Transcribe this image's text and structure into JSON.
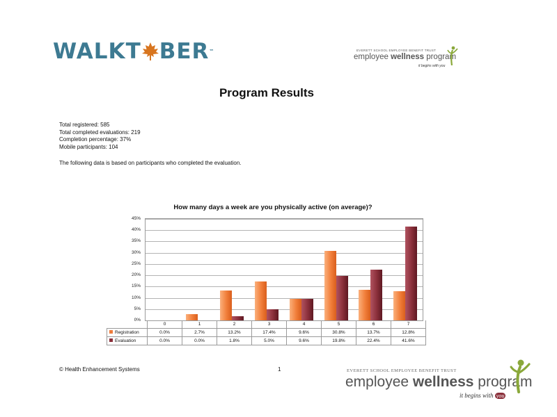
{
  "header": {
    "logo_left_pre": "WALKT",
    "logo_left_post": "BER",
    "logo_tm": "™",
    "logo_right": {
      "trust": "EVERETT SCHOOL EMPLOYEE BENEFIT TRUST",
      "program_a": "employee ",
      "program_b": "wellness",
      "program_c": " program",
      "tagline": "it begins with you"
    }
  },
  "title": "Program Results",
  "stats": [
    "Total registered: 585",
    "Total completed evaluations: 219",
    "Completion percentage: 37%",
    "Mobile participants: 104"
  ],
  "note": "The following data is based on participants who completed the evaluation.",
  "chart_data": {
    "type": "bar",
    "title": "How many days a week are you physically active (on average)?",
    "categories": [
      "0",
      "1",
      "2",
      "3",
      "4",
      "5",
      "6",
      "7"
    ],
    "series": [
      {
        "name": "Registration",
        "values": [
          0.0,
          2.7,
          13.2,
          17.4,
          9.6,
          30.8,
          13.7,
          12.8
        ],
        "labels": [
          "0.0%",
          "2.7%",
          "13.2%",
          "17.4%",
          "9.6%",
          "30.8%",
          "13.7%",
          "12.8%"
        ],
        "color": "#ee7c3c"
      },
      {
        "name": "Evaluation",
        "values": [
          0.0,
          0.0,
          1.8,
          5.0,
          9.6,
          19.8,
          22.4,
          41.6
        ],
        "labels": [
          "0.0%",
          "0.0%",
          "1.8%",
          "5.0%",
          "9.6%",
          "19.8%",
          "22.4%",
          "41.6%"
        ],
        "color": "#8a2f3a"
      }
    ],
    "yticks": [
      "0%",
      "5%",
      "10%",
      "15%",
      "20%",
      "25%",
      "30%",
      "35%",
      "40%",
      "45%"
    ],
    "ylim": [
      0,
      45
    ],
    "grid": true,
    "legend": "data-table"
  },
  "footer": {
    "copyright": "© Health Enhancement Systems",
    "page_number": "1",
    "logo": {
      "trust": "EVERETT SCHOOL EMPLOYEE BENEFIT TRUST",
      "program_a": "employee ",
      "program_b": "wellness",
      "program_c": " program",
      "tagline_a": "it begins with",
      "tagline_b": "you"
    }
  },
  "colors": {
    "walktober": "#3d7a92",
    "leaf": "#d8751f",
    "wellness_green": "#8aa83a"
  }
}
